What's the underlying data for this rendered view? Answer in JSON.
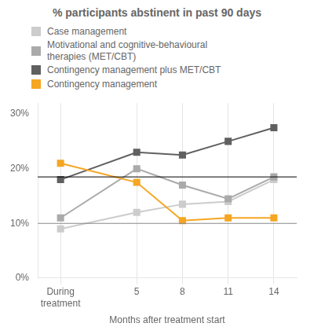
{
  "chart_data": {
    "type": "line",
    "title": "% participants abstinent in past 90 days",
    "xlabel": "Months after treatment start",
    "x": [
      0,
      5,
      8,
      11,
      14
    ],
    "xlim": [
      -1.5,
      15.5
    ],
    "xticks": [
      {
        "value": 0,
        "label": "During\ntreatment"
      },
      5,
      8,
      11,
      14
    ],
    "ylim": [
      0,
      32
    ],
    "yticks": [
      {
        "value": 0,
        "label": "0%"
      },
      {
        "value": 10,
        "label": "10%"
      },
      {
        "value": 20,
        "label": "20%"
      },
      {
        "value": 30,
        "label": "30%"
      }
    ],
    "series": [
      {
        "name": "Case management",
        "color": "#cccccc",
        "values": [
          9,
          12,
          13.5,
          14,
          18
        ]
      },
      {
        "name": "Motivational and cognitive-behavioural\ntherapies (MET/CBT)",
        "color": "#aaaaaa",
        "values": [
          11,
          20,
          17,
          14.5,
          18.5
        ]
      },
      {
        "name": "Contingency management plus MET/CBT",
        "color": "#606060",
        "values": [
          18,
          23,
          22.5,
          25,
          27.5
        ]
      },
      {
        "name": "Contingency management",
        "color": "#f5a623",
        "values": [
          21,
          17.5,
          10.5,
          11,
          11
        ]
      }
    ],
    "hlines": [
      {
        "value": 18.5,
        "color": "#000000"
      },
      {
        "value": 10,
        "color": "#888888"
      }
    ],
    "marker": "square",
    "grid": "x",
    "legend": "top"
  }
}
